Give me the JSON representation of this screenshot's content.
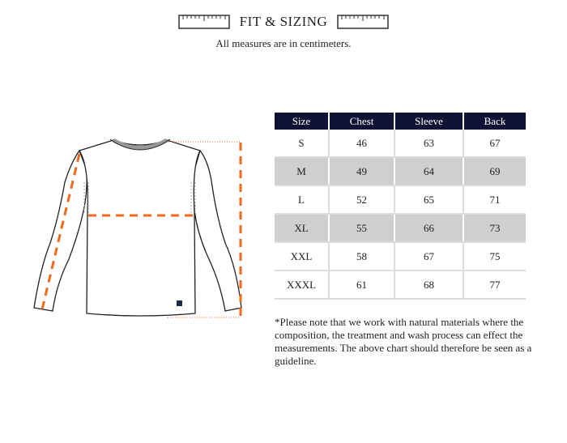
{
  "header": {
    "title": "FIT & SIZING",
    "subtitle": "All measures are in centimeters.",
    "ruler_icon": "ruler-icon"
  },
  "table": {
    "columns": [
      "Size",
      "Chest",
      "Sleeve",
      "Back"
    ],
    "rows": [
      [
        "S",
        "46",
        "63",
        "67"
      ],
      [
        "M",
        "49",
        "64",
        "69"
      ],
      [
        "L",
        "52",
        "65",
        "71"
      ],
      [
        "XL",
        "55",
        "66",
        "73"
      ],
      [
        "XXL",
        "58",
        "67",
        "75"
      ],
      [
        "XXXL",
        "61",
        "68",
        "77"
      ]
    ]
  },
  "note": "*Please note that we work with natural materials where the composition, the treatment and wash process can effect the measurements. The above chart should therefore be seen as a guideline.",
  "colors": {
    "header_bg": "#0f1234",
    "measure_line": "#f06a1e",
    "alt_row": "#cfcfcf"
  }
}
